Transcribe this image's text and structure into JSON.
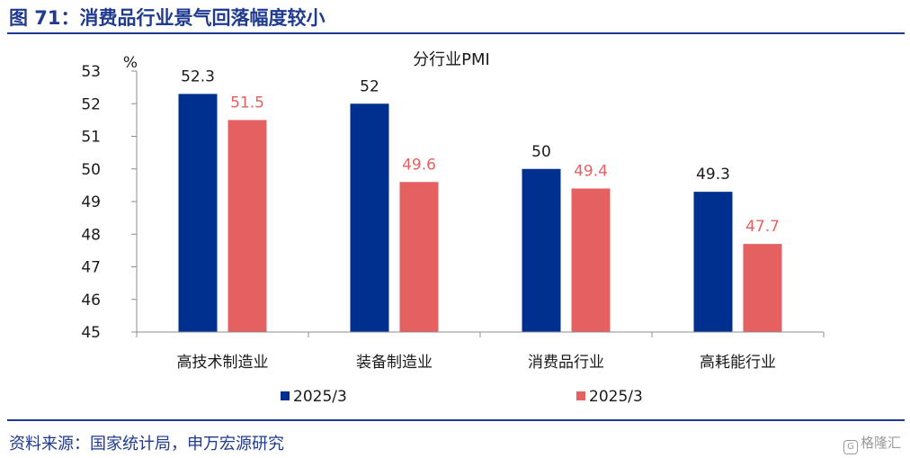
{
  "figure_title": "图 71：消费品行业景气回落幅度较小",
  "source_text": "资料来源：国家统计局，申万宏源研究",
  "watermark": "格隆汇",
  "colors": {
    "accent": "#1f3a8f",
    "series1": "#00308f",
    "series2": "#e56061"
  },
  "chart_data": {
    "type": "bar",
    "title": "分行业PMI",
    "ylabel": "%",
    "xlabel": "",
    "ylim": [
      45,
      53
    ],
    "yticks": [
      45,
      46,
      47,
      48,
      49,
      50,
      51,
      52,
      53
    ],
    "categories": [
      "高技术制造业",
      "装备制造业",
      "消费品行业",
      "高耗能行业"
    ],
    "series": [
      {
        "name": "2025/3",
        "values": [
          52.3,
          52,
          50,
          49.3
        ],
        "labels": [
          "52.3",
          "52",
          "50",
          "49.3"
        ],
        "color": "#00308f"
      },
      {
        "name": "2025/3",
        "values": [
          51.5,
          49.6,
          49.4,
          47.7
        ],
        "labels": [
          "51.5",
          "49.6",
          "49.4",
          "47.7"
        ],
        "color": "#e56061"
      }
    ],
    "legend_position": "bottom",
    "grid": false
  }
}
